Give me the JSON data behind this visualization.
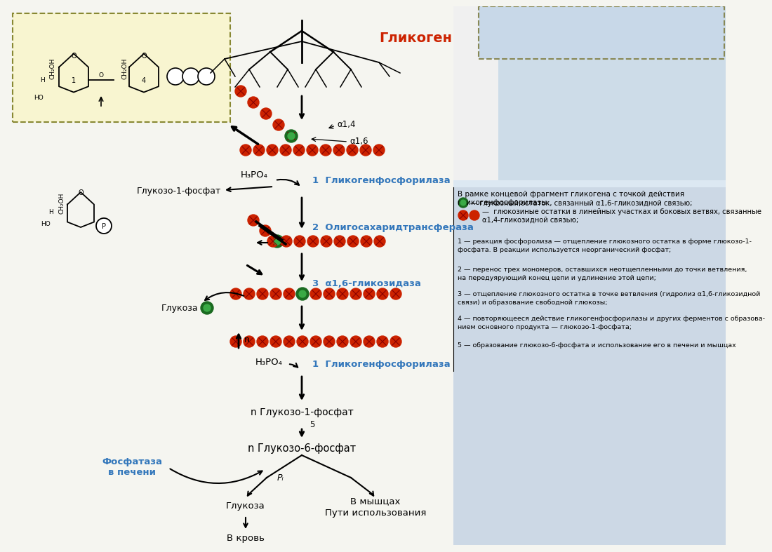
{
  "red_color": "#cc2200",
  "green_color": "#2a7a2a",
  "teal_color": "#3377bb",
  "black": "#000000",
  "left_box_color": "#f8f5d0",
  "right_panel_light": "#dce8f0",
  "right_panel_lighter": "#e8f0f8",
  "title_glycogen": "Гликоген",
  "label_h3po4": "H₃PO₄",
  "label_1_glycogenf": "1  Гликогенфосфорилаза",
  "label_glukoso1_a": "Глукозо-1-фосфат",
  "label_2_oligo": "2  Олигосахаридтрансфераза",
  "label_3_alpha": "3  α1,6-гликозидаза",
  "label_glukoza": "Глукоза",
  "label_1_glycogenf2": "1  Гликогенфосфорилаза",
  "label_n_glukoso1": "n Глукозо-1-фосфат",
  "label_n_glukoso6": "n Глукозо-6-фосфат",
  "label_fosfataza": "Фосфатаза\nв печени",
  "label_glukoza2": "Глукоза",
  "label_v_krov": "В кровь",
  "label_v_myshcy": "В мышцах",
  "label_puti": "Пути использования",
  "label_alpha14": "α1,4",
  "label_alpha16": "α1,6",
  "label_n": "n",
  "label_pi": "Pᵢ",
  "label_5": "5",
  "right_header": "В рамке концевой фрагмент гликогена с точкой действия гликогенфосфорилазы:",
  "right_green_leg": "— глукозный остаток, связанный α1,6-гликозидной связью;",
  "right_red_leg": "—  глюкозиные остатки в линейных участках и боковых ветвях, связанные\nα1,4-гликозидной связью;",
  "right_n1": "1 — реакция фосфоролиза — отщепление глюкозного остатка в форме глюкозо-1-\nфосфата. В реакции используется неорганический фосфат;",
  "right_n2": "2 — перенос трех мономеров, оставшихся неотщепленными до точки ветвления,\nна передуярующий конец цепи и удлинение этой цепи;",
  "right_n3": "3 — отщепление глюкозного остатка в точке ветвления (гидролиз α1,6-гликозидной\nсвязи) и образование свободной глюкозы;",
  "right_n4": "4 — повторяющееся действие гликогенфосфорилазы и других ферментов с образова-\nнием основного продукта — глюкозо-1-фосфата;",
  "right_n5": "5 — образование глюкозо-6-фосфата и использование его в печени и мышцах"
}
